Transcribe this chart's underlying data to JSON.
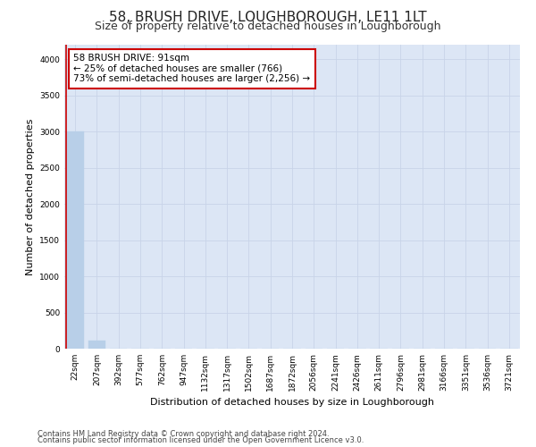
{
  "title": "58, BRUSH DRIVE, LOUGHBOROUGH, LE11 1LT",
  "subtitle": "Size of property relative to detached houses in Loughborough",
  "xlabel": "Distribution of detached houses by size in Loughborough",
  "ylabel": "Number of detached properties",
  "footnote1": "Contains HM Land Registry data © Crown copyright and database right 2024.",
  "footnote2": "Contains public sector information licensed under the Open Government Licence v3.0.",
  "categories": [
    "22sqm",
    "207sqm",
    "392sqm",
    "577sqm",
    "762sqm",
    "947sqm",
    "1132sqm",
    "1317sqm",
    "1502sqm",
    "1687sqm",
    "1872sqm",
    "2056sqm",
    "2241sqm",
    "2426sqm",
    "2611sqm",
    "2796sqm",
    "2981sqm",
    "3166sqm",
    "3351sqm",
    "3536sqm",
    "3721sqm"
  ],
  "values": [
    3000,
    110,
    0,
    0,
    0,
    0,
    0,
    0,
    0,
    0,
    0,
    0,
    0,
    0,
    0,
    0,
    0,
    0,
    0,
    0,
    0
  ],
  "bar_color": "#b8cfe8",
  "bar_edge_color": "#b8cfe8",
  "annotation_box_text": "58 BRUSH DRIVE: 91sqm\n← 25% of detached houses are smaller (766)\n73% of semi-detached houses are larger (2,256) →",
  "vline_color": "#cc0000",
  "box_edge_color": "#cc0000",
  "ylim": [
    0,
    4200
  ],
  "yticks": [
    0,
    500,
    1000,
    1500,
    2000,
    2500,
    3000,
    3500,
    4000
  ],
  "grid_color": "#c8d4e8",
  "bg_color": "#dce6f5",
  "fig_bg_color": "#ffffff",
  "title_fontsize": 11,
  "subtitle_fontsize": 9,
  "ylabel_fontsize": 8,
  "xlabel_fontsize": 8,
  "tick_fontsize": 6.5,
  "footnote_fontsize": 6,
  "ann_fontsize": 7.5
}
